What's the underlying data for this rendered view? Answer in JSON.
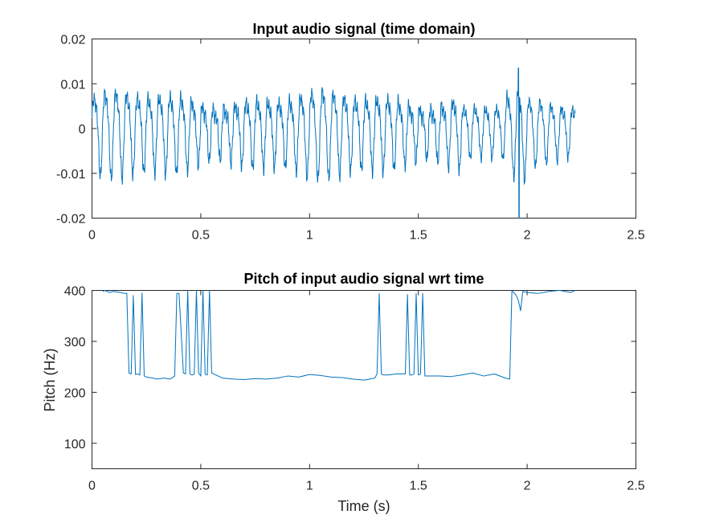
{
  "chart_data": [
    {
      "type": "line",
      "title": "Input audio signal (time domain)",
      "xlabel": "",
      "ylabel": "",
      "xlim": [
        0,
        2.5
      ],
      "ylim": [
        -0.02,
        0.02
      ],
      "xticks": [
        0,
        0.5,
        1,
        1.5,
        2,
        2.5
      ],
      "xtick_labels": [
        "0",
        "0.5",
        "1",
        "1.5",
        "2",
        "2.5"
      ],
      "yticks": [
        0.02,
        0.01,
        0,
        -0.01,
        -0.02
      ],
      "ytick_labels": [
        "0.02",
        "0.01",
        "0",
        "-0.01",
        "-0.02"
      ],
      "grid": false,
      "color": "#0072BD",
      "signal": {
        "duration_s": 2.22,
        "dominant_frequency_hz": 20,
        "peak_amplitude_range": [
          0.005,
          0.01
        ],
        "transient": {
          "t": 1.96,
          "max": 0.0135,
          "min": -0.02
        }
      }
    },
    {
      "type": "line",
      "title": "Pitch of input audio signal wrt time",
      "xlabel": "Time (s)",
      "ylabel": "Pitch (Hz)",
      "xlim": [
        0,
        2.5
      ],
      "ylim": [
        50,
        400
      ],
      "xticks": [
        0,
        0.5,
        1,
        1.5,
        2,
        2.5
      ],
      "xtick_labels": [
        "0",
        "0.5",
        "1",
        "1.5",
        "2",
        "2.5"
      ],
      "yticks": [
        400,
        300,
        200,
        100
      ],
      "ytick_labels": [
        "400",
        "300",
        "200",
        "100"
      ],
      "grid": false,
      "color": "#0072BD",
      "x": [
        0.05,
        0.06,
        0.08,
        0.1,
        0.13,
        0.15,
        0.16,
        0.17,
        0.18,
        0.19,
        0.2,
        0.21,
        0.22,
        0.23,
        0.24,
        0.25,
        0.28,
        0.3,
        0.33,
        0.36,
        0.38,
        0.39,
        0.4,
        0.42,
        0.43,
        0.44,
        0.45,
        0.46,
        0.47,
        0.48,
        0.49,
        0.5,
        0.51,
        0.52,
        0.53,
        0.54,
        0.55,
        0.56,
        0.57,
        0.58,
        0.6,
        0.65,
        0.7,
        0.75,
        0.8,
        0.85,
        0.9,
        0.95,
        1.0,
        1.05,
        1.1,
        1.15,
        1.2,
        1.25,
        1.3,
        1.31,
        1.32,
        1.33,
        1.34,
        1.36,
        1.4,
        1.44,
        1.45,
        1.46,
        1.47,
        1.48,
        1.49,
        1.5,
        1.51,
        1.52,
        1.53,
        1.55,
        1.6,
        1.65,
        1.7,
        1.75,
        1.8,
        1.85,
        1.9,
        1.92,
        1.93,
        1.95,
        1.96,
        1.97,
        1.98,
        2.0,
        2.05,
        2.1,
        2.15,
        2.2,
        2.22
      ],
      "y": [
        398,
        400,
        396,
        398,
        396,
        394,
        394,
        238,
        236,
        390,
        235,
        236,
        234,
        395,
        232,
        230,
        228,
        226,
        228,
        226,
        232,
        394,
        394,
        238,
        236,
        400,
        236,
        234,
        236,
        400,
        238,
        232,
        400,
        236,
        234,
        400,
        238,
        236,
        234,
        232,
        228,
        226,
        225,
        227,
        226,
        228,
        232,
        230,
        235,
        233,
        230,
        229,
        226,
        224,
        228,
        236,
        394,
        236,
        234,
        234,
        236,
        236,
        392,
        234,
        234,
        236,
        394,
        234,
        236,
        394,
        232,
        232,
        232,
        231,
        234,
        238,
        232,
        236,
        228,
        226,
        400,
        390,
        380,
        360,
        398,
        396,
        394,
        398,
        400,
        396,
        400
      ]
    }
  ]
}
